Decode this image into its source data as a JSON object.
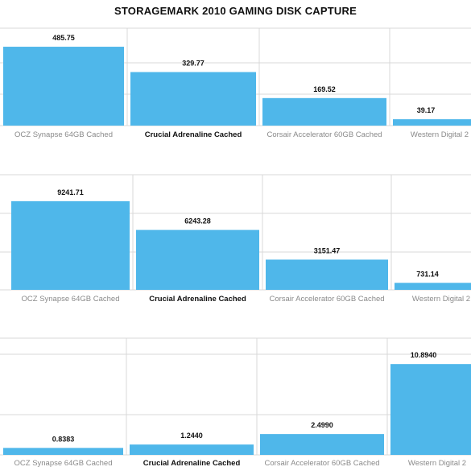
{
  "title": "STORAGEMARK 2010 GAMING DISK CAPTURE",
  "colors": {
    "bar": "#4fb7ea",
    "grid": "#d9d9d9",
    "highlight_label": "#111111",
    "label": "#8a8a8a"
  },
  "chart_data": [
    {
      "type": "bar",
      "categories": [
        "OCZ Synapse 64GB Cached",
        "Crucial Adrenaline Cached",
        "Corsair Accelerator 60GB Cached",
        "Western Digital 2"
      ],
      "values": [
        485.75,
        329.77,
        169.52,
        39.17
      ],
      "value_labels": [
        "485.75",
        "329.77",
        "169.52",
        "39.17"
      ],
      "highlight_category": "Crucial Adrenaline Cached",
      "ylim": [
        0,
        600
      ],
      "grid": true
    },
    {
      "type": "bar",
      "categories": [
        "OCZ Synapse 64GB Cached",
        "Crucial Adrenaline Cached",
        "Corsair Accelerator 60GB Cached",
        "Western Digital 2"
      ],
      "values": [
        9241.71,
        6243.28,
        3151.47,
        731.14
      ],
      "value_labels": [
        "9241.71",
        "6243.28",
        "3151.47",
        "731.14"
      ],
      "highlight_category": "Crucial Adrenaline Cached",
      "ylim": [
        0,
        12000
      ],
      "grid": true
    },
    {
      "type": "bar",
      "categories": [
        "OCZ Synapse 64GB Cached",
        "Crucial Adrenaline Cached",
        "Corsair Accelerator 60GB Cached",
        "Western Digital 2"
      ],
      "values": [
        0.8383,
        1.244,
        2.499,
        10.894
      ],
      "value_labels": [
        "0.8383",
        "1.2440",
        "2.4990",
        "10.8940"
      ],
      "highlight_category": "Crucial Adrenaline Cached",
      "ylim": [
        0,
        14
      ],
      "grid": true
    }
  ]
}
